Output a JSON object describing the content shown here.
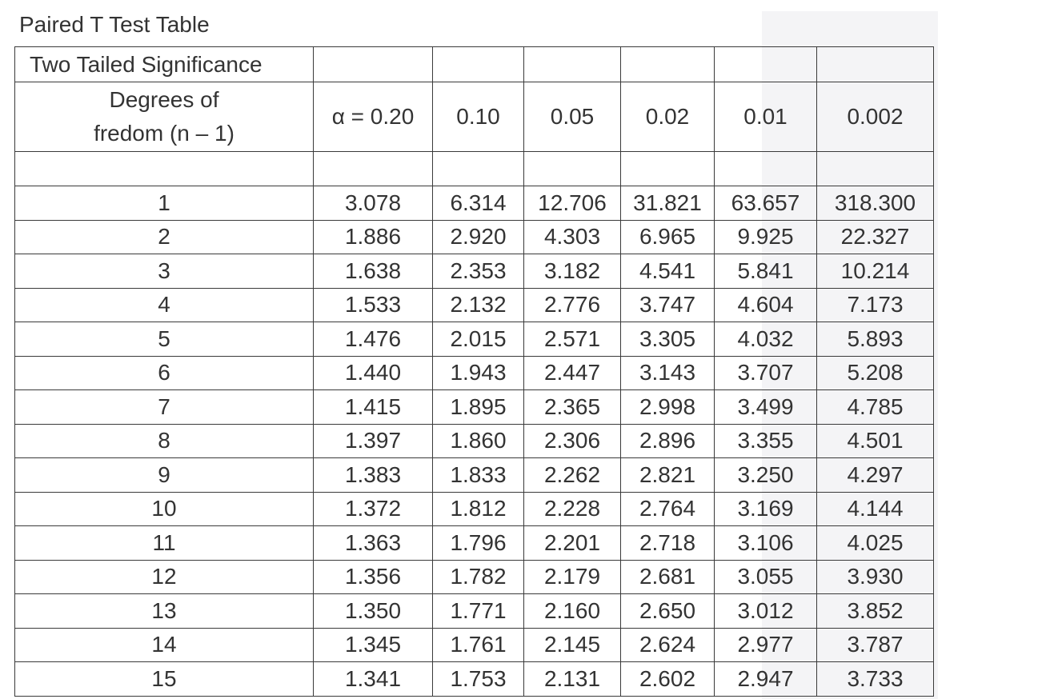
{
  "caption": "Paired T Test Table",
  "table": {
    "significance_label": "Two Tailed Significance",
    "dof_label_line1": "Degrees of",
    "dof_label_line2": "fredom (n – 1)",
    "alpha_headers": [
      "α = 0.20",
      "0.10",
      "0.05",
      "0.02",
      "0.01",
      "0.002"
    ],
    "rows": [
      {
        "df": "1",
        "values": [
          "3.078",
          "6.314",
          "12.706",
          "31.821",
          "63.657",
          "318.300"
        ]
      },
      {
        "df": "2",
        "values": [
          "1.886",
          "2.920",
          "4.303",
          "6.965",
          "9.925",
          "22.327"
        ]
      },
      {
        "df": "3",
        "values": [
          "1.638",
          "2.353",
          "3.182",
          "4.541",
          "5.841",
          "10.214"
        ]
      },
      {
        "df": "4",
        "values": [
          "1.533",
          "2.132",
          "2.776",
          "3.747",
          "4.604",
          "7.173"
        ]
      },
      {
        "df": "5",
        "values": [
          "1.476",
          "2.015",
          "2.571",
          "3.305",
          "4.032",
          "5.893"
        ]
      },
      {
        "df": "6",
        "values": [
          "1.440",
          "1.943",
          "2.447",
          "3.143",
          "3.707",
          "5.208"
        ]
      },
      {
        "df": "7",
        "values": [
          "1.415",
          "1.895",
          "2.365",
          "2.998",
          "3.499",
          "4.785"
        ]
      },
      {
        "df": "8",
        "values": [
          "1.397",
          "1.860",
          "2.306",
          "2.896",
          "3.355",
          "4.501"
        ]
      },
      {
        "df": "9",
        "values": [
          "1.383",
          "1.833",
          "2.262",
          "2.821",
          "3.250",
          "4.297"
        ]
      },
      {
        "df": "10",
        "values": [
          "1.372",
          "1.812",
          "2.228",
          "2.764",
          "3.169",
          "4.144"
        ]
      },
      {
        "df": "11",
        "values": [
          "1.363",
          "1.796",
          "2.201",
          "2.718",
          "3.106",
          "4.025"
        ]
      },
      {
        "df": "12",
        "values": [
          "1.356",
          "1.782",
          "2.179",
          "2.681",
          "3.055",
          "3.930"
        ]
      },
      {
        "df": "13",
        "values": [
          "1.350",
          "1.771",
          "2.160",
          "2.650",
          "3.012",
          "3.852"
        ]
      },
      {
        "df": "14",
        "values": [
          "1.345",
          "1.761",
          "2.145",
          "2.624",
          "2.977",
          "3.787"
        ]
      },
      {
        "df": "15",
        "values": [
          "1.341",
          "1.753",
          "2.131",
          "2.602",
          "2.947",
          "3.733"
        ]
      }
    ]
  }
}
